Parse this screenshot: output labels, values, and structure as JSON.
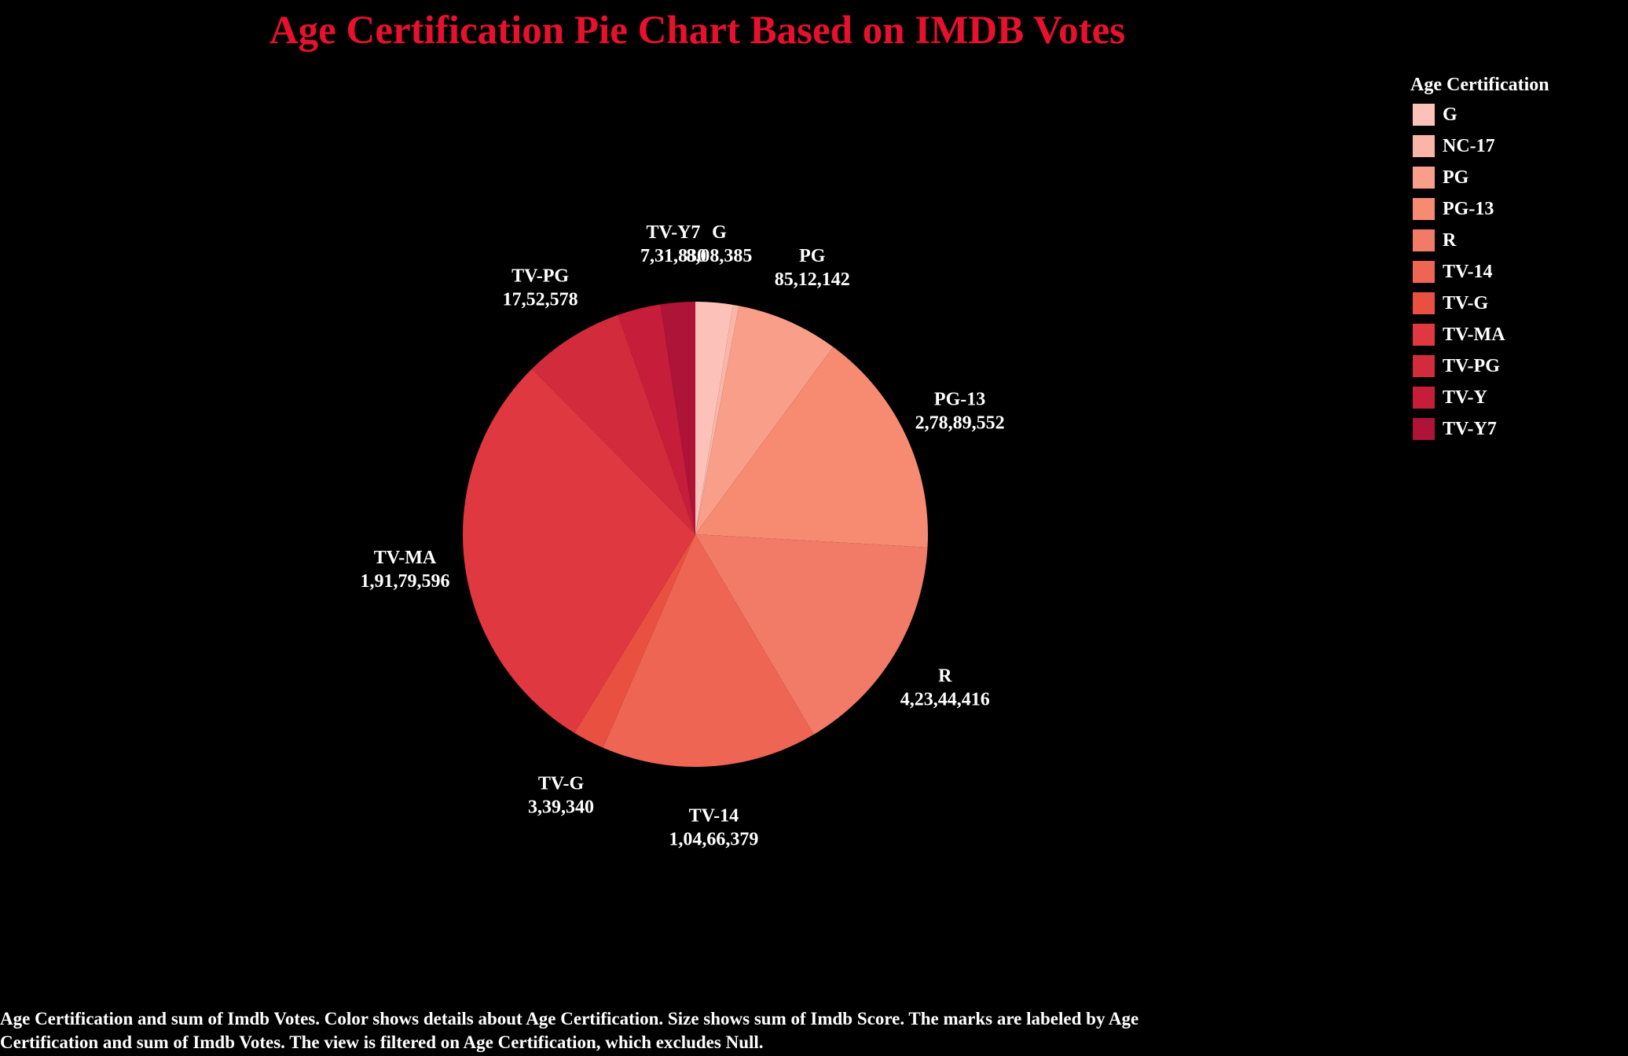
{
  "chart_data": {
    "type": "pie",
    "title": "Age Certification Pie Chart Based on IMDB Votes",
    "legend_title": "Age Certification",
    "legend_position": "top-right",
    "start": "12 o'clock, clockwise",
    "slices": [
      {
        "label": "G",
        "value_text": "8,08,385",
        "share": 0.026,
        "color": "#fcc1b8",
        "show_label": true
      },
      {
        "label": "NC-17",
        "value_text": "",
        "share": 0.004,
        "color": "#fbb5a8",
        "show_label": false
      },
      {
        "label": "PG",
        "value_text": "85,12,142",
        "share": 0.071,
        "color": "#f99e88",
        "show_label": true
      },
      {
        "label": "PG-13",
        "value_text": "2,78,89,552",
        "share": 0.158,
        "color": "#f68b72",
        "show_label": true
      },
      {
        "label": "R",
        "value_text": "4,23,44,416",
        "share": 0.156,
        "color": "#f27b67",
        "show_label": true
      },
      {
        "label": "TV-14",
        "value_text": "1,04,66,379",
        "share": 0.15,
        "color": "#ef6553",
        "show_label": true
      },
      {
        "label": "TV-G",
        "value_text": "3,39,340",
        "share": 0.022,
        "color": "#e9503f",
        "show_label": true
      },
      {
        "label": "TV-MA",
        "value_text": "1,91,79,596",
        "share": 0.289,
        "color": "#df3840",
        "show_label": true
      },
      {
        "label": "TV-PG",
        "value_text": "17,52,578",
        "share": 0.07,
        "color": "#d22c3c",
        "show_label": true
      },
      {
        "label": "TV-Y",
        "value_text": "",
        "share": 0.03,
        "color": "#c61e3a",
        "show_label": false
      },
      {
        "label": "TV-Y7",
        "value_text": "7,31,830",
        "share": 0.024,
        "color": "#ae1438",
        "show_label": true
      }
    ]
  },
  "footer_note": {
    "line1": "Age Certification and sum of Imdb Votes.  Color shows details about Age Certification.  Size shows sum of Imdb Score.  The marks are labeled by Age",
    "line2": "Certification and sum of Imdb Votes. The view is filtered on Age Certification, which excludes Null."
  }
}
